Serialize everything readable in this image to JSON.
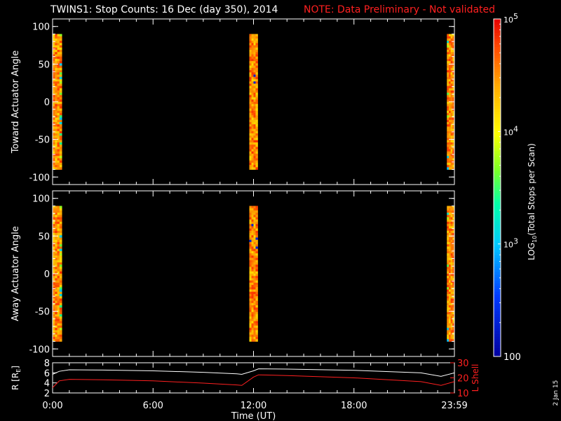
{
  "title": {
    "main": "TWINS1: Stop Counts: 16 Dec (day 350), 2014",
    "note": "NOTE: Data Preliminary - Not validated"
  },
  "colors": {
    "background": "#000000",
    "axes": "#ffffff",
    "note": "#ff2020",
    "r_line": "#ffffff",
    "lshell_line": "#ff2020"
  },
  "chart_data": [
    {
      "type": "heatmap",
      "panel": "toward",
      "ylabel": "Toward Actuator Angle",
      "ylim": [
        -110,
        110
      ],
      "yticks": [
        100,
        50,
        0,
        -50,
        -100
      ],
      "xlim_hours": [
        0,
        24
      ],
      "angle_range": [
        -90,
        90
      ],
      "data_intervals_hours": [
        [
          0.0,
          0.55
        ],
        [
          11.75,
          12.25
        ],
        [
          23.55,
          24.0
        ]
      ],
      "dominant_log10_counts": 4.6
    },
    {
      "type": "heatmap",
      "panel": "away",
      "ylabel": "Away Actuator Angle",
      "ylim": [
        -110,
        110
      ],
      "yticks": [
        100,
        50,
        0,
        -50,
        -100
      ],
      "xlim_hours": [
        0,
        24
      ],
      "angle_range": [
        -90,
        90
      ],
      "data_intervals_hours": [
        [
          0.0,
          0.55
        ],
        [
          11.75,
          12.25
        ],
        [
          23.55,
          24.0
        ]
      ],
      "dominant_log10_counts": 4.6
    },
    {
      "type": "line",
      "panel": "orbit",
      "ylabel_left": "R [R",
      "ylabel_left_sub": "E",
      "ylabel_left_end": "]",
      "ylabel_right": "L Shell",
      "ylim_left": [
        2,
        8
      ],
      "yticks_left": [
        8,
        6,
        4,
        2
      ],
      "ylim_right": [
        10,
        30
      ],
      "yticks_right": [
        30,
        20,
        10
      ],
      "xlabel": "Time (UT)",
      "xticks": [
        "0:00",
        "6:00",
        "12:00",
        "18:00",
        "23:59"
      ],
      "xtick_hours": [
        0,
        6,
        12,
        18,
        24
      ],
      "series": [
        {
          "x_hours": [
            0,
            0.4,
            1,
            3,
            6,
            9,
            11,
            11.3,
            12,
            12.3,
            14,
            18,
            22,
            23.2,
            24
          ],
          "r_values": [
            5.7,
            6.3,
            6.6,
            6.55,
            6.4,
            6.1,
            5.8,
            5.7,
            6.4,
            6.8,
            6.75,
            6.5,
            6.0,
            5.3,
            6.0
          ]
        },
        {
          "x_hours": [
            0,
            0.4,
            1,
            3,
            6,
            9,
            11,
            11.3,
            12,
            12.3,
            14,
            18,
            22,
            23.2,
            24
          ],
          "lshell_values": [
            13.5,
            18.0,
            19.0,
            18.7,
            18.0,
            16.5,
            15.3,
            15.0,
            20.5,
            22.0,
            21.5,
            20.0,
            17.5,
            15.0,
            17.5
          ]
        }
      ]
    },
    {
      "type": "colorbar",
      "label_pre": "LOG",
      "label_sub": "10",
      "label_post": "(Total Stops per Scan)",
      "scale": "log",
      "range": [
        100,
        100000
      ],
      "ticks": [
        {
          "base": "10",
          "exp": "5",
          "log": 5
        },
        {
          "base": "10",
          "exp": "4",
          "log": 4
        },
        {
          "base": "10",
          "exp": "3",
          "log": 3
        },
        {
          "base": "100",
          "exp": "",
          "log": 2
        }
      ]
    }
  ],
  "datestamp": "2 Jan 15"
}
